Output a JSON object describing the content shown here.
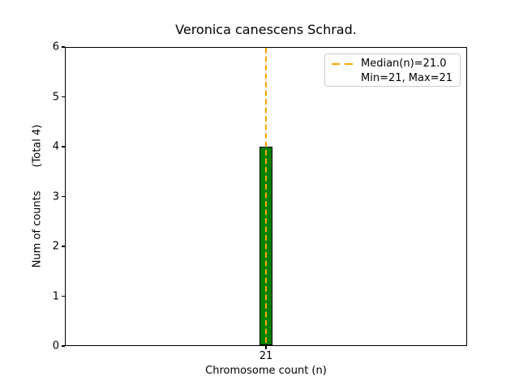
{
  "figure": {
    "background": "#ffffff"
  },
  "chart_data": {
    "type": "bar",
    "title": "Veronica canescens Schrad.",
    "xlabel": "Chromosome count (n)",
    "ylabel": "Num of counts       (Total 4)",
    "categories": [
      "21"
    ],
    "values": [
      4
    ],
    "total_counts": 4,
    "median_n": 21.0,
    "min_n": 21,
    "max_n": 21,
    "ylim": [
      0,
      6
    ],
    "yticks": [
      "0",
      "1",
      "2",
      "3",
      "4",
      "5",
      "6"
    ],
    "grid": false,
    "legend_position": "upper right",
    "legend": {
      "entries": [
        {
          "label": "Median(n)=21.0",
          "handle": "orange-dashed-line"
        },
        {
          "label": "Min=21, Max=21",
          "handle": "none"
        }
      ]
    },
    "colors": {
      "bar_fill": "#008000",
      "bar_edge": "#000000",
      "median_line": "#FFA500",
      "axes": "#000000",
      "legend_border": "#cccccc",
      "text": "#000000"
    }
  }
}
